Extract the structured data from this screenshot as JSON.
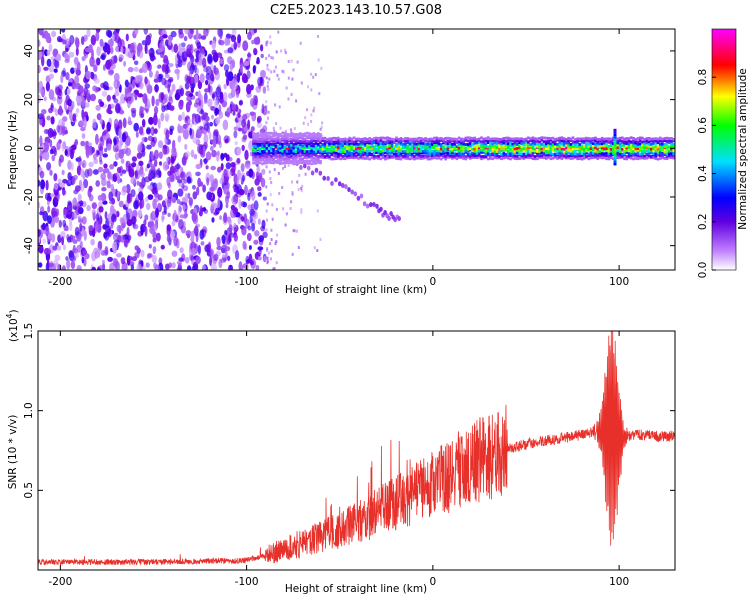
{
  "title": "C2E5.2023.143.10.57.G08",
  "chart_data": [
    {
      "type": "heatmap",
      "xlabel": "Height of straight line (km)",
      "ylabel": "Frequency (Hz)",
      "xlim": [
        -212,
        130
      ],
      "ylim": [
        -50,
        49
      ],
      "xticks": [
        -200,
        -100,
        0,
        100
      ],
      "yticks": [
        -40,
        -20,
        0,
        20,
        40
      ],
      "colorbar": {
        "label": "Normalized spectral amplitude",
        "range": [
          0,
          1
        ],
        "ticks": [
          "0.0",
          "0.2",
          "0.4",
          "0.6",
          "0.8"
        ],
        "colors": [
          "#ffffff",
          "#a020f0",
          "#0000ff",
          "#00ffff",
          "#00ff00",
          "#ffff00",
          "#ff0000",
          "#ff00ff"
        ]
      },
      "features": {
        "noise_region_x": [
          -212,
          -90
        ],
        "band_x": [
          -97,
          130
        ],
        "band_center_hz": 0,
        "band_halfwidth_hz": 3,
        "fading_tail_x": [
          -90,
          -60
        ],
        "descending_streak": [
          [
            -75,
            -5
          ],
          [
            -50,
            -15
          ],
          [
            -30,
            -25
          ],
          [
            -17,
            -30
          ]
        ],
        "spike_x": 97
      }
    },
    {
      "type": "line",
      "xlabel": "Height of straight line (km)",
      "ylabel": "SNR (10 * v/v)",
      "multiplier": "(x10",
      "multiplier_exp": "4",
      "multiplier_close": ")",
      "xlim": [
        -212,
        130
      ],
      "ylim": [
        0,
        15000
      ],
      "xticks": [
        -200,
        -100,
        0,
        100
      ],
      "yticks": [
        5000,
        10000,
        15000
      ],
      "ytick_labels": [
        "0.5",
        "1.0",
        "1.5"
      ],
      "color": "#e8302a",
      "envelope": {
        "x": [
          -212,
          -150,
          -100,
          -90,
          -80,
          -70,
          -60,
          -50,
          -40,
          -30,
          -20,
          -10,
          0,
          10,
          20,
          30,
          40,
          50,
          60,
          70,
          80,
          88,
          94,
          100,
          104,
          110,
          120,
          130
        ],
        "y": [
          500,
          500,
          600,
          900,
          1300,
          1700,
          2100,
          2500,
          3000,
          3600,
          4200,
          4800,
          5400,
          6000,
          6600,
          7200,
          7600,
          7900,
          8100,
          8300,
          8500,
          8700,
          8500,
          8300,
          8400,
          8500,
          8400,
          8400
        ]
      },
      "burst_x": [
        86,
        105
      ]
    }
  ]
}
